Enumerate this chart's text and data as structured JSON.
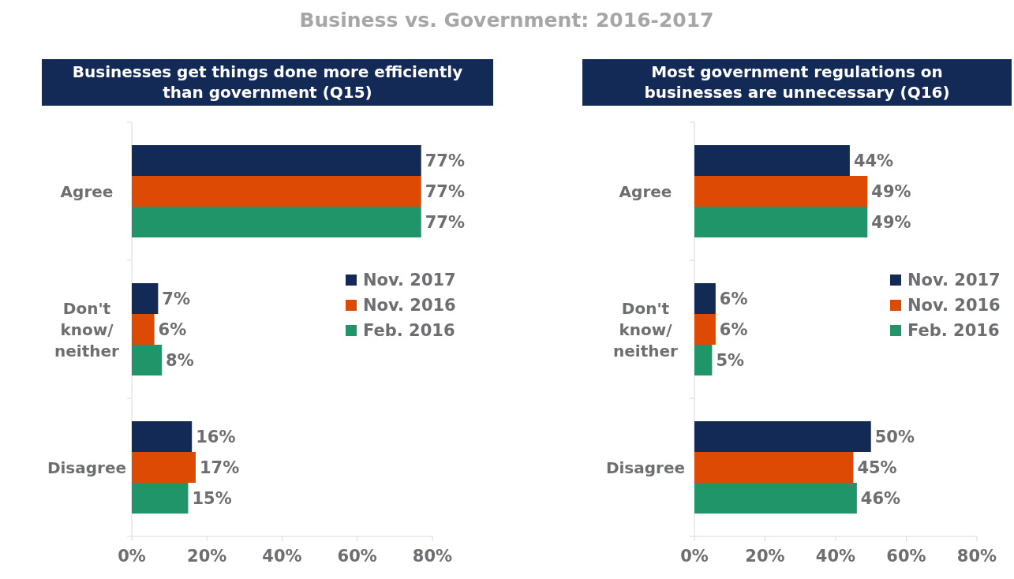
{
  "chart_data": [
    {
      "type": "bar",
      "orientation": "horizontal",
      "title": "Businesses get things done more efficiently\nthan government (Q15)",
      "annotations": [
        "Business vs. Government: 2016-2017"
      ],
      "categories": [
        "Agree",
        "Don't\nknow/\nneither",
        "Disagree"
      ],
      "series": [
        {
          "name": "Nov. 2017",
          "color": "#132a56",
          "values": [
            77,
            7,
            16
          ],
          "value_labels": [
            "77%",
            "7%",
            "16%"
          ]
        },
        {
          "name": "Nov. 2016",
          "color": "#dd4a04",
          "values": [
            77,
            6,
            17
          ],
          "value_labels": [
            "77%",
            "6%",
            "17%"
          ]
        },
        {
          "name": "Feb. 2016",
          "color": "#21956a",
          "values": [
            77,
            8,
            15
          ],
          "value_labels": [
            "77%",
            "8%",
            "15%"
          ]
        }
      ],
      "xlim": [
        0,
        80
      ],
      "xticks": [
        {
          "value": 0,
          "label": "0%"
        },
        {
          "value": 20,
          "label": "20%"
        },
        {
          "value": 40,
          "label": "40%"
        },
        {
          "value": 60,
          "label": "60%"
        },
        {
          "value": 80,
          "label": "80%"
        }
      ],
      "grid": false,
      "legend": "right"
    },
    {
      "type": "bar",
      "orientation": "horizontal",
      "title": "Most government regulations on\nbusinesses are unnecessary (Q16)",
      "categories": [
        "Agree",
        "Don't\nknow/\nneither",
        "Disagree"
      ],
      "series": [
        {
          "name": "Nov. 2017",
          "color": "#132a56",
          "values": [
            44,
            6,
            50
          ],
          "value_labels": [
            "44%",
            "6%",
            "50%"
          ]
        },
        {
          "name": "Nov. 2016",
          "color": "#dd4a04",
          "values": [
            49,
            6,
            45
          ],
          "value_labels": [
            "49%",
            "6%",
            "45%"
          ]
        },
        {
          "name": "Feb. 2016",
          "color": "#21956a",
          "values": [
            49,
            5,
            46
          ],
          "value_labels": [
            "49%",
            "5%",
            "46%"
          ]
        }
      ],
      "xlim": [
        0,
        80
      ],
      "xticks": [
        {
          "value": 0,
          "label": "0%"
        },
        {
          "value": 20,
          "label": "20%"
        },
        {
          "value": 40,
          "label": "40%"
        },
        {
          "value": 60,
          "label": "60%"
        },
        {
          "value": 80,
          "label": "80%"
        }
      ],
      "grid": false,
      "legend": "right"
    }
  ]
}
